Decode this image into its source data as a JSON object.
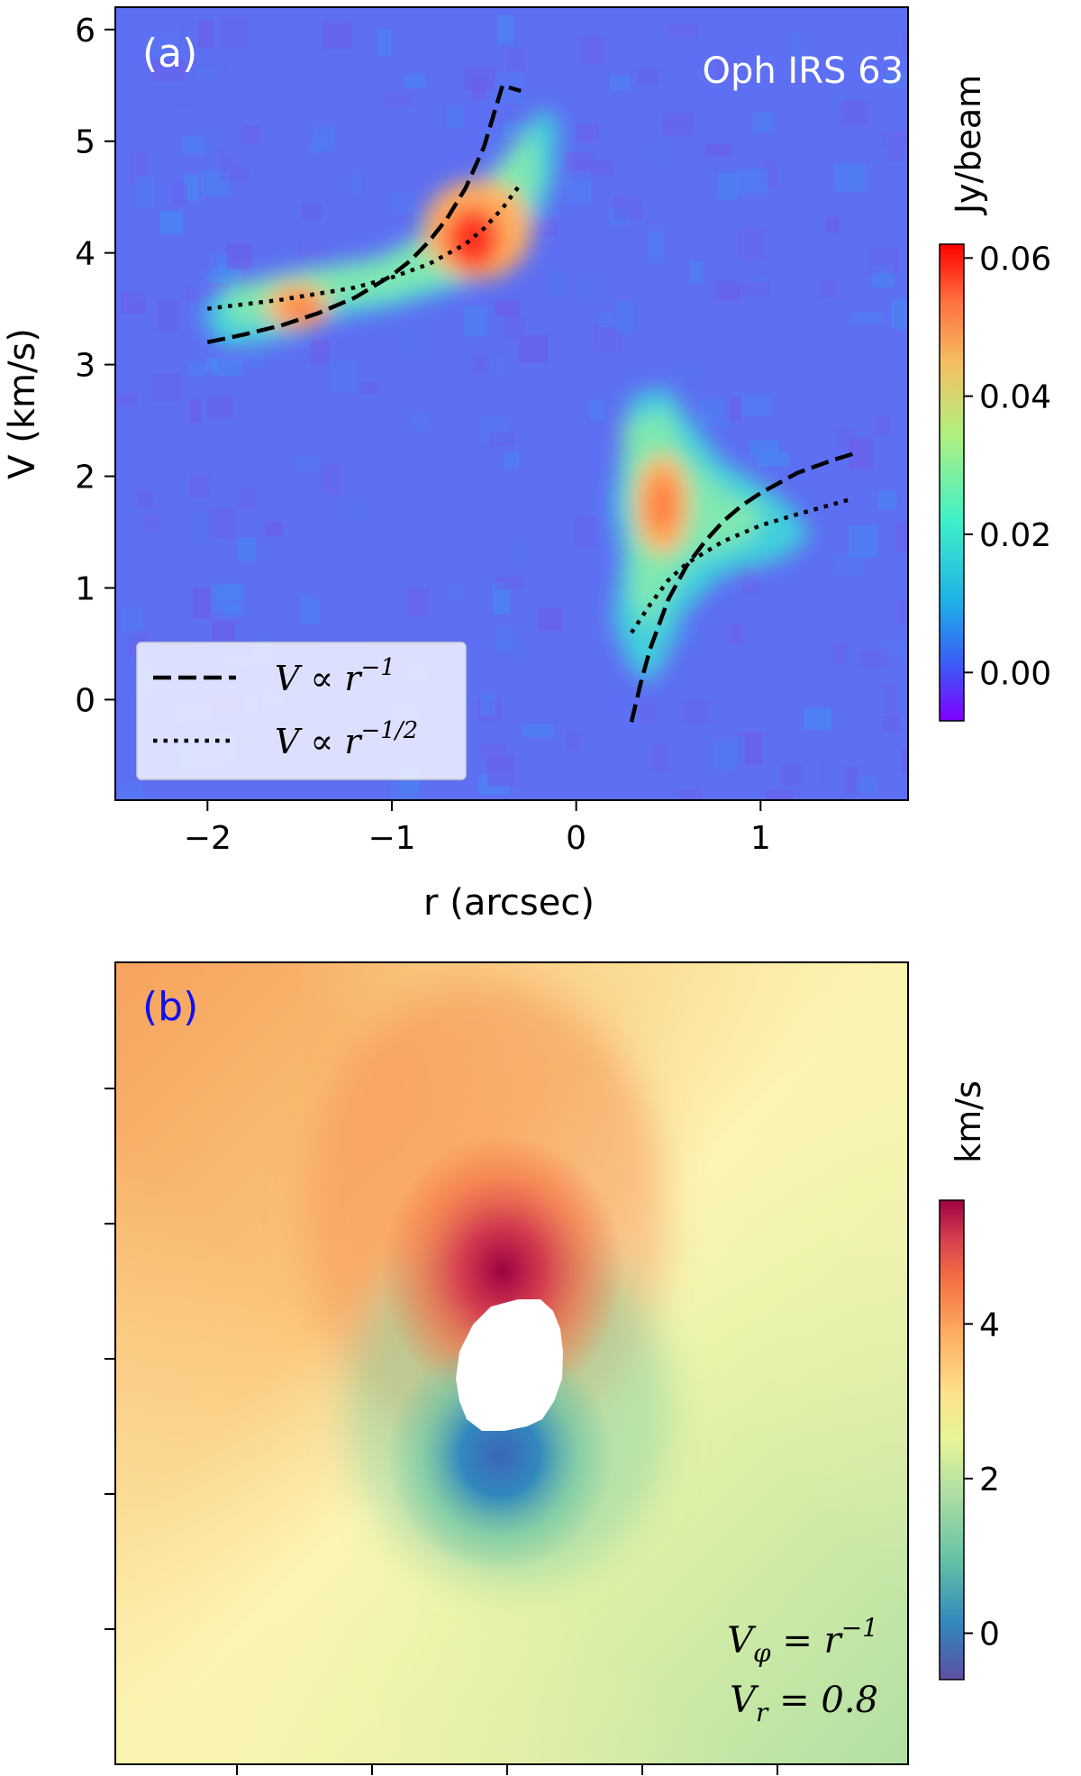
{
  "chart_data": [
    {
      "type": "heatmap",
      "panel_label": "(a)",
      "annotation": "Oph IRS 63",
      "xlabel": "r (arcsec)",
      "ylabel": "V (km/s)",
      "xlim": [
        -2.5,
        1.8
      ],
      "ylim": [
        -0.9,
        6.2
      ],
      "xticks": [
        -2,
        -1,
        0,
        1
      ],
      "xtick_labels": [
        "−2",
        "−1",
        "0",
        "1"
      ],
      "yticks": [
        0,
        1,
        2,
        3,
        4,
        5,
        6
      ],
      "ytick_labels": [
        "0",
        "1",
        "2",
        "3",
        "4",
        "5",
        "6"
      ],
      "colormap": "rainbow",
      "colorbar": {
        "label": "Jy/beam",
        "range": [
          -0.007,
          0.062
        ],
        "ticks": [
          0.0,
          0.02,
          0.04,
          0.06
        ],
        "tick_labels": [
          "0.00",
          "0.02",
          "0.04",
          "0.06"
        ]
      },
      "emission_peaks": [
        {
          "r": -0.55,
          "v": 4.1,
          "intensity": 0.062
        },
        {
          "r": -1.5,
          "v": 3.5,
          "intensity": 0.052
        },
        {
          "r": 0.45,
          "v": 1.75,
          "intensity": 0.05
        }
      ],
      "series": [
        {
          "name_prefix": "V ∝ r",
          "exponent": "−1",
          "style": "dashed",
          "segments": [
            {
              "x": [
                -2.0,
                -1.8,
                -1.6,
                -1.4,
                -1.2,
                -1.0,
                -0.9,
                -0.8,
                -0.7,
                -0.6,
                -0.5,
                -0.4,
                -0.3
              ],
              "y": [
                3.2,
                3.27,
                3.35,
                3.46,
                3.6,
                3.8,
                3.93,
                4.1,
                4.31,
                4.58,
                4.95,
                5.5,
                5.45
              ]
            },
            {
              "x": [
                0.3,
                0.35,
                0.4,
                0.5,
                0.6,
                0.7,
                0.8,
                0.9,
                1.0,
                1.2,
                1.4,
                1.5
              ],
              "y": [
                -0.2,
                0.15,
                0.45,
                0.9,
                1.2,
                1.42,
                1.6,
                1.74,
                1.85,
                2.03,
                2.15,
                2.2
              ]
            }
          ]
        },
        {
          "name_prefix": "V ∝ r",
          "exponent": "−1/2",
          "style": "dotted",
          "segments": [
            {
              "x": [
                -2.0,
                -1.6,
                -1.2,
                -1.0,
                -0.8,
                -0.6,
                -0.5,
                -0.4,
                -0.3
              ],
              "y": [
                3.5,
                3.58,
                3.69,
                3.78,
                3.9,
                4.08,
                4.22,
                4.4,
                4.62
              ]
            },
            {
              "x": [
                0.3,
                0.4,
                0.5,
                0.6,
                0.8,
                1.0,
                1.2,
                1.5
              ],
              "y": [
                0.6,
                0.85,
                1.07,
                1.22,
                1.42,
                1.56,
                1.66,
                1.8
              ]
            }
          ]
        }
      ],
      "legend_placement": "lower-left"
    },
    {
      "type": "heatmap",
      "panel_label": "(b)",
      "colormap": "Spectral_r",
      "colorbar": {
        "label": "km/s",
        "range": [
          -0.6,
          5.6
        ],
        "ticks": [
          0,
          2,
          4
        ],
        "tick_labels": [
          "0",
          "2",
          "4"
        ]
      },
      "model_labels": [
        {
          "base": "V",
          "sub": "φ",
          "rest": " = r",
          "sup": "−1"
        },
        {
          "base": "V",
          "sub": "r",
          "rest": " = 0.8",
          "sup": ""
        }
      ],
      "xtick_count": 5,
      "ytick_count": 5,
      "tick_labels_shown": false
    }
  ],
  "colors": {
    "panel_a_label": "#ffffff",
    "panel_b_label": "#1010ee",
    "annotation": "#ffffff",
    "legend_background": "#eef0ff"
  }
}
